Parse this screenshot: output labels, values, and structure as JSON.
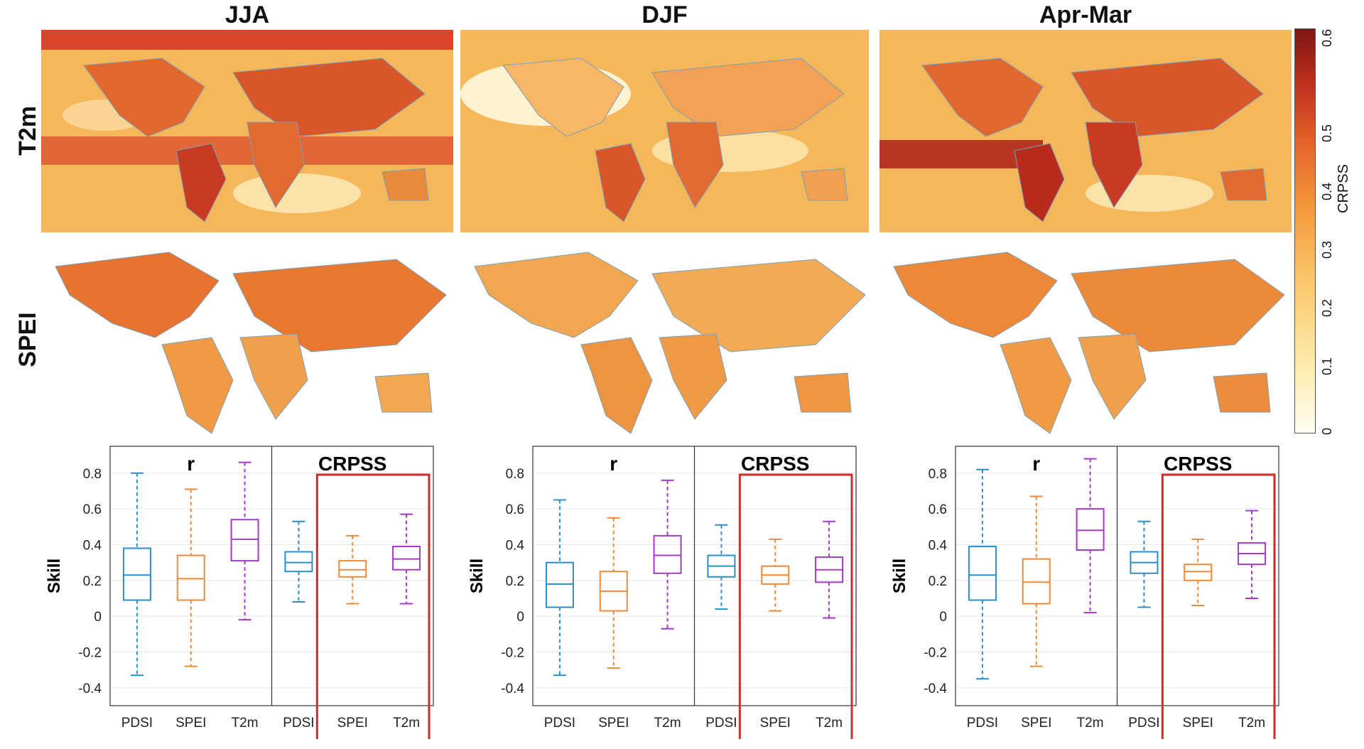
{
  "column_titles": [
    "JJA",
    "DJF",
    "Apr-Mar"
  ],
  "row_labels": [
    "T2m",
    "SPEI"
  ],
  "colorbar": {
    "label": "CRPSS",
    "ticks": [
      "0",
      "0.1",
      "0.2",
      "0.3",
      "0.4",
      "0.5",
      "0.6"
    ],
    "colors": [
      "#fffff0",
      "#fde9a8",
      "#fbc76a",
      "#f59a3c",
      "#e4632a",
      "#c0311d",
      "#7f1414"
    ]
  },
  "chart_data": [
    {
      "type": "box",
      "panel": "JJA",
      "ylabel": "Skill",
      "ylim": [
        -0.5,
        0.95
      ],
      "yticks": [
        -0.4,
        -0.2,
        0,
        0.2,
        0.4,
        0.6,
        0.8
      ],
      "group_titles": [
        "r",
        "CRPSS"
      ],
      "categories": [
        "PDSI",
        "SPEI",
        "T2m",
        "PDSI",
        "SPEI",
        "T2m"
      ],
      "highlight": "CRPSS SPEI and T2m",
      "boxes": [
        {
          "group": "r",
          "category": "PDSI",
          "color": "#2a8fc9",
          "whisker_low": -0.33,
          "q1": 0.09,
          "median": 0.23,
          "q3": 0.38,
          "whisker_high": 0.8
        },
        {
          "group": "r",
          "category": "SPEI",
          "color": "#ee8a3a",
          "whisker_low": -0.28,
          "q1": 0.09,
          "median": 0.21,
          "q3": 0.34,
          "whisker_high": 0.71
        },
        {
          "group": "r",
          "category": "T2m",
          "color": "#a23bc8",
          "whisker_low": -0.02,
          "q1": 0.31,
          "median": 0.43,
          "q3": 0.54,
          "whisker_high": 0.86
        },
        {
          "group": "CRPSS",
          "category": "PDSI",
          "color": "#2a8fc9",
          "whisker_low": 0.08,
          "q1": 0.25,
          "median": 0.3,
          "q3": 0.36,
          "whisker_high": 0.53
        },
        {
          "group": "CRPSS",
          "category": "SPEI",
          "color": "#ee8a3a",
          "whisker_low": 0.07,
          "q1": 0.22,
          "median": 0.26,
          "q3": 0.31,
          "whisker_high": 0.45
        },
        {
          "group": "CRPSS",
          "category": "T2m",
          "color": "#a23bc8",
          "whisker_low": 0.07,
          "q1": 0.26,
          "median": 0.32,
          "q3": 0.39,
          "whisker_high": 0.57
        }
      ]
    },
    {
      "type": "box",
      "panel": "DJF",
      "ylabel": "Skill",
      "ylim": [
        -0.5,
        0.95
      ],
      "yticks": [
        -0.4,
        -0.2,
        0,
        0.2,
        0.4,
        0.6,
        0.8
      ],
      "group_titles": [
        "r",
        "CRPSS"
      ],
      "categories": [
        "PDSI",
        "SPEI",
        "T2m",
        "PDSI",
        "SPEI",
        "T2m"
      ],
      "highlight": "CRPSS SPEI and T2m",
      "boxes": [
        {
          "group": "r",
          "category": "PDSI",
          "color": "#2a8fc9",
          "whisker_low": -0.33,
          "q1": 0.05,
          "median": 0.18,
          "q3": 0.3,
          "whisker_high": 0.65
        },
        {
          "group": "r",
          "category": "SPEI",
          "color": "#ee8a3a",
          "whisker_low": -0.29,
          "q1": 0.03,
          "median": 0.14,
          "q3": 0.25,
          "whisker_high": 0.55
        },
        {
          "group": "r",
          "category": "T2m",
          "color": "#a23bc8",
          "whisker_low": -0.07,
          "q1": 0.24,
          "median": 0.34,
          "q3": 0.45,
          "whisker_high": 0.76
        },
        {
          "group": "CRPSS",
          "category": "PDSI",
          "color": "#2a8fc9",
          "whisker_low": 0.04,
          "q1": 0.22,
          "median": 0.28,
          "q3": 0.34,
          "whisker_high": 0.51
        },
        {
          "group": "CRPSS",
          "category": "SPEI",
          "color": "#ee8a3a",
          "whisker_low": 0.03,
          "q1": 0.18,
          "median": 0.23,
          "q3": 0.28,
          "whisker_high": 0.43
        },
        {
          "group": "CRPSS",
          "category": "T2m",
          "color": "#a23bc8",
          "whisker_low": -0.01,
          "q1": 0.19,
          "median": 0.26,
          "q3": 0.33,
          "whisker_high": 0.53
        }
      ]
    },
    {
      "type": "box",
      "panel": "Apr-Mar",
      "ylabel": "Skill",
      "ylim": [
        -0.5,
        0.95
      ],
      "yticks": [
        -0.4,
        -0.2,
        0,
        0.2,
        0.4,
        0.6,
        0.8
      ],
      "group_titles": [
        "r",
        "CRPSS"
      ],
      "categories": [
        "PDSI",
        "SPEI",
        "T2m",
        "PDSI",
        "SPEI",
        "T2m"
      ],
      "highlight": "CRPSS SPEI and T2m",
      "boxes": [
        {
          "group": "r",
          "category": "PDSI",
          "color": "#2a8fc9",
          "whisker_low": -0.35,
          "q1": 0.09,
          "median": 0.23,
          "q3": 0.39,
          "whisker_high": 0.82
        },
        {
          "group": "r",
          "category": "SPEI",
          "color": "#ee8a3a",
          "whisker_low": -0.28,
          "q1": 0.07,
          "median": 0.19,
          "q3": 0.32,
          "whisker_high": 0.67
        },
        {
          "group": "r",
          "category": "T2m",
          "color": "#a23bc8",
          "whisker_low": 0.02,
          "q1": 0.37,
          "median": 0.48,
          "q3": 0.6,
          "whisker_high": 0.88
        },
        {
          "group": "CRPSS",
          "category": "PDSI",
          "color": "#2a8fc9",
          "whisker_low": 0.05,
          "q1": 0.24,
          "median": 0.3,
          "q3": 0.36,
          "whisker_high": 0.53
        },
        {
          "group": "CRPSS",
          "category": "SPEI",
          "color": "#ee8a3a",
          "whisker_low": 0.06,
          "q1": 0.2,
          "median": 0.25,
          "q3": 0.29,
          "whisker_high": 0.43
        },
        {
          "group": "CRPSS",
          "category": "T2m",
          "color": "#a23bc8",
          "whisker_low": 0.1,
          "q1": 0.29,
          "median": 0.35,
          "q3": 0.41,
          "whisker_high": 0.59
        }
      ]
    }
  ]
}
